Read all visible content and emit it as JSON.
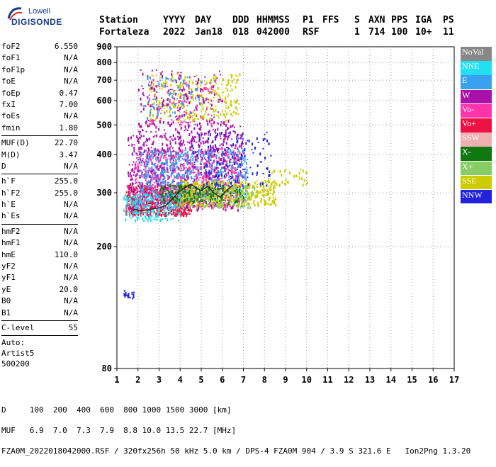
{
  "logo": {
    "line1": "Lowell",
    "line2": "DIGISONDE"
  },
  "header": {
    "row1": [
      "Station",
      "YYYY",
      "DAY",
      "DDD",
      "HHMMSS",
      "P1",
      "FFS",
      "S",
      "AXN",
      "PPS",
      "IGA",
      "PS"
    ],
    "row2": [
      "Fortaleza",
      "2022",
      "Jan18",
      "018",
      "042000",
      "RSF",
      "",
      "1",
      "714",
      "100",
      "10+",
      "11"
    ]
  },
  "params": [
    {
      "type": "row",
      "label": "foF2",
      "value": "6.550"
    },
    {
      "type": "row",
      "label": "foF1",
      "value": "N/A"
    },
    {
      "type": "row",
      "label": "foF1p",
      "value": "N/A"
    },
    {
      "type": "row",
      "label": "foE",
      "value": "N/A"
    },
    {
      "type": "row",
      "label": "foEp",
      "value": "0.47"
    },
    {
      "type": "row",
      "label": "fxI",
      "value": "7.00"
    },
    {
      "type": "row",
      "label": "foEs",
      "value": "N/A"
    },
    {
      "type": "row",
      "label": "fmin",
      "value": "1.80"
    },
    {
      "type": "sep"
    },
    {
      "type": "row",
      "label": "MUF(D)",
      "value": "22.70"
    },
    {
      "type": "row",
      "label": "M(D)",
      "value": "3.47"
    },
    {
      "type": "row",
      "label": "D",
      "value": "N/A"
    },
    {
      "type": "sep"
    },
    {
      "type": "row",
      "label": "h`F",
      "value": "255.0"
    },
    {
      "type": "row",
      "label": "h`F2",
      "value": "255.0"
    },
    {
      "type": "row",
      "label": "h`E",
      "value": "N/A"
    },
    {
      "type": "row",
      "label": "h`Es",
      "value": "N/A"
    },
    {
      "type": "sep"
    },
    {
      "type": "row",
      "label": "hmF2",
      "value": "N/A"
    },
    {
      "type": "row",
      "label": "hmF1",
      "value": "N/A"
    },
    {
      "type": "row",
      "label": "hmE",
      "value": "110.0"
    },
    {
      "type": "row",
      "label": "yF2",
      "value": "N/A"
    },
    {
      "type": "row",
      "label": "yF1",
      "value": "N/A"
    },
    {
      "type": "row",
      "label": "yE",
      "value": "20.0"
    },
    {
      "type": "row",
      "label": "B0",
      "value": "N/A"
    },
    {
      "type": "row",
      "label": "B1",
      "value": "N/A"
    },
    {
      "type": "sep"
    },
    {
      "type": "row",
      "label": "C-level",
      "value": "55"
    },
    {
      "type": "sep"
    },
    {
      "type": "text",
      "value": "Auto:"
    },
    {
      "type": "text",
      "value": "Artist5"
    },
    {
      "type": "text",
      "value": "500200"
    }
  ],
  "legend": [
    {
      "label": "NoVal",
      "color": "#888888"
    },
    {
      "label": "NNE",
      "color": "#22e0f0"
    },
    {
      "label": "E",
      "color": "#3aa0f0"
    },
    {
      "label": "W",
      "color": "#aa11aa"
    },
    {
      "label": "Vo-",
      "color": "#ff33aa"
    },
    {
      "label": "Vo+",
      "color": "#ee1144"
    },
    {
      "label": "SSW",
      "color": "#f0b0b0"
    },
    {
      "label": "X-",
      "color": "#117711"
    },
    {
      "label": "X+",
      "color": "#88cc66"
    },
    {
      "label": "SSE",
      "color": "#cccc00"
    },
    {
      "label": "NNW",
      "color": "#2222dd"
    }
  ],
  "footer": {
    "d_row": "D     100  200  400  600  800 1000 1500 3000 [km]",
    "muf_row": "MUF   6.9  7.0  7.3  7.9  8.8 10.0 13.5 22.7 [MHz]",
    "file_row": "FZA0M_2022018042000.RSF / 320fx256h 50 kHz 5.0 km / DPS-4 FZA0M 904 / 3.9 S 321.6 E   Ion2Png 1.3.20"
  },
  "chart_data": {
    "type": "scatter",
    "x_ticks": [
      1,
      2,
      3,
      4,
      5,
      6,
      7,
      8,
      9,
      10,
      11,
      12,
      13,
      14,
      15,
      16,
      17
    ],
    "y_ticks": [
      80,
      200,
      300,
      400,
      500,
      600,
      700,
      800,
      900
    ],
    "xlim": [
      1,
      17
    ],
    "ylim": [
      80,
      900
    ],
    "y_scale": "log",
    "grid": true,
    "grid_style": "dotted",
    "legend_position": "right",
    "trace": [
      [
        1.8,
        265
      ],
      [
        2.2,
        262
      ],
      [
        2.6,
        265
      ],
      [
        3.0,
        268
      ],
      [
        3.3,
        272
      ],
      [
        3.6,
        285
      ],
      [
        3.9,
        300
      ],
      [
        4.2,
        312
      ],
      [
        4.5,
        320
      ],
      [
        4.8,
        310
      ],
      [
        5.0,
        305
      ],
      [
        5.3,
        315
      ],
      [
        5.6,
        300
      ],
      [
        5.9,
        290
      ],
      [
        6.2,
        305
      ],
      [
        6.5,
        318
      ]
    ],
    "clusters": [
      {
        "color": "#ee1144",
        "x": [
          1.4,
          4.5
        ],
        "y": [
          255,
          320
        ],
        "n": 700
      },
      {
        "color": "#ff33aa",
        "x": [
          1.8,
          6.8
        ],
        "y": [
          270,
          420
        ],
        "n": 700
      },
      {
        "color": "#aa11aa",
        "x": [
          1.5,
          7.0
        ],
        "y": [
          265,
          470
        ],
        "n": 500
      },
      {
        "color": "#3aa0f0",
        "x": [
          2.0,
          7.2
        ],
        "y": [
          290,
          420
        ],
        "n": 500
      },
      {
        "color": "#22e0f0",
        "x": [
          1.3,
          4.0
        ],
        "y": [
          245,
          300
        ],
        "n": 220
      },
      {
        "color": "#cccc00",
        "x": [
          4.0,
          8.5
        ],
        "y": [
          275,
          330
        ],
        "n": 420
      },
      {
        "color": "#88cc66",
        "x": [
          3.5,
          7.5
        ],
        "y": [
          270,
          320
        ],
        "n": 200
      },
      {
        "color": "#117711",
        "x": [
          3.0,
          7.0
        ],
        "y": [
          280,
          320
        ],
        "n": 180
      },
      {
        "color": "#2222dd",
        "x": [
          4.5,
          8.3
        ],
        "y": [
          320,
          480
        ],
        "n": 160
      },
      {
        "color": "#cccc00",
        "x": [
          2.5,
          6.8
        ],
        "y": [
          520,
          740
        ],
        "n": 280
      },
      {
        "color": "#aa11aa",
        "x": [
          2.0,
          6.0
        ],
        "y": [
          500,
          760
        ],
        "n": 140
      },
      {
        "color": "#ff33aa",
        "x": [
          2.5,
          5.5
        ],
        "y": [
          500,
          700
        ],
        "n": 90
      },
      {
        "color": "#3aa0f0",
        "x": [
          2.2,
          5.0
        ],
        "y": [
          530,
          720
        ],
        "n": 80
      },
      {
        "color": "#aa11aa",
        "x": [
          2.0,
          7.0
        ],
        "y": [
          420,
          520
        ],
        "n": 160
      },
      {
        "color": "#cccc00",
        "x": [
          8.0,
          10.0
        ],
        "y": [
          320,
          360
        ],
        "n": 40
      },
      {
        "color": "#2222dd",
        "x": [
          1.3,
          1.8
        ],
        "y": [
          136,
          145
        ],
        "n": 18
      }
    ]
  }
}
